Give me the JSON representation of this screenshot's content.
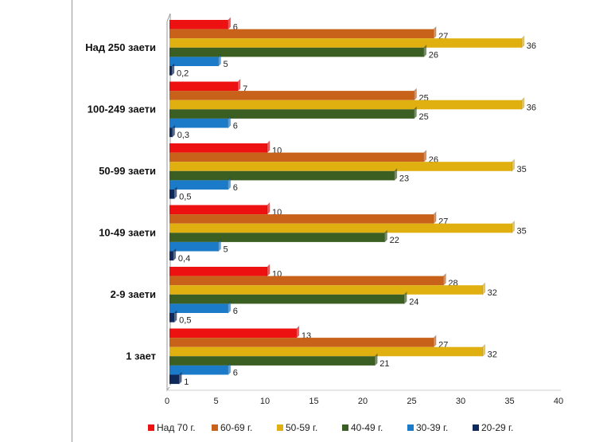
{
  "chart_data": {
    "type": "bar",
    "orientation": "horizontal",
    "categories": [
      "Над 250 заети",
      "100-249 заети",
      "50-99 заети",
      "10-49 заети",
      "2-9 заети",
      "1 зает"
    ],
    "series": [
      {
        "name": "Над 70 г.",
        "color": "#ee1111",
        "values": [
          6,
          7,
          10,
          10,
          10,
          13
        ],
        "labels": [
          "6",
          "7",
          "10",
          "10",
          "10",
          "13"
        ]
      },
      {
        "name": "60-69 г.",
        "color": "#c8621a",
        "values": [
          27,
          25,
          26,
          27,
          28,
          27
        ],
        "labels": [
          "27",
          "25",
          "26",
          "27",
          "28",
          "27"
        ]
      },
      {
        "name": "50-59 г.",
        "color": "#e0b010",
        "values": [
          36,
          36,
          35,
          35,
          32,
          32
        ],
        "labels": [
          "36",
          "36",
          "35",
          "35",
          "32",
          "32"
        ]
      },
      {
        "name": "40-49 г.",
        "color": "#3b5e22",
        "values": [
          26,
          25,
          23,
          22,
          24,
          21
        ],
        "labels": [
          "26",
          "25",
          "23",
          "22",
          "24",
          "21"
        ]
      },
      {
        "name": "30-39 г.",
        "color": "#1c7bc8",
        "values": [
          5,
          6,
          6,
          5,
          6,
          6
        ],
        "labels": [
          "5",
          "6",
          "6",
          "5",
          "6",
          "6"
        ]
      },
      {
        "name": "20-29 г.",
        "color": "#0f2a5a",
        "values": [
          0.2,
          0.3,
          0.5,
          0.4,
          0.5,
          1
        ],
        "labels": [
          "0,2",
          "0,3",
          "0,5",
          "0,4",
          "0,5",
          "1"
        ]
      }
    ],
    "xticks": [
      "0",
      "5",
      "10",
      "15",
      "20",
      "25",
      "30",
      "35",
      "40"
    ],
    "xlim": [
      0,
      40
    ],
    "title": "",
    "xlabel": "",
    "ylabel": "",
    "legend": "bottom",
    "grid": false
  }
}
